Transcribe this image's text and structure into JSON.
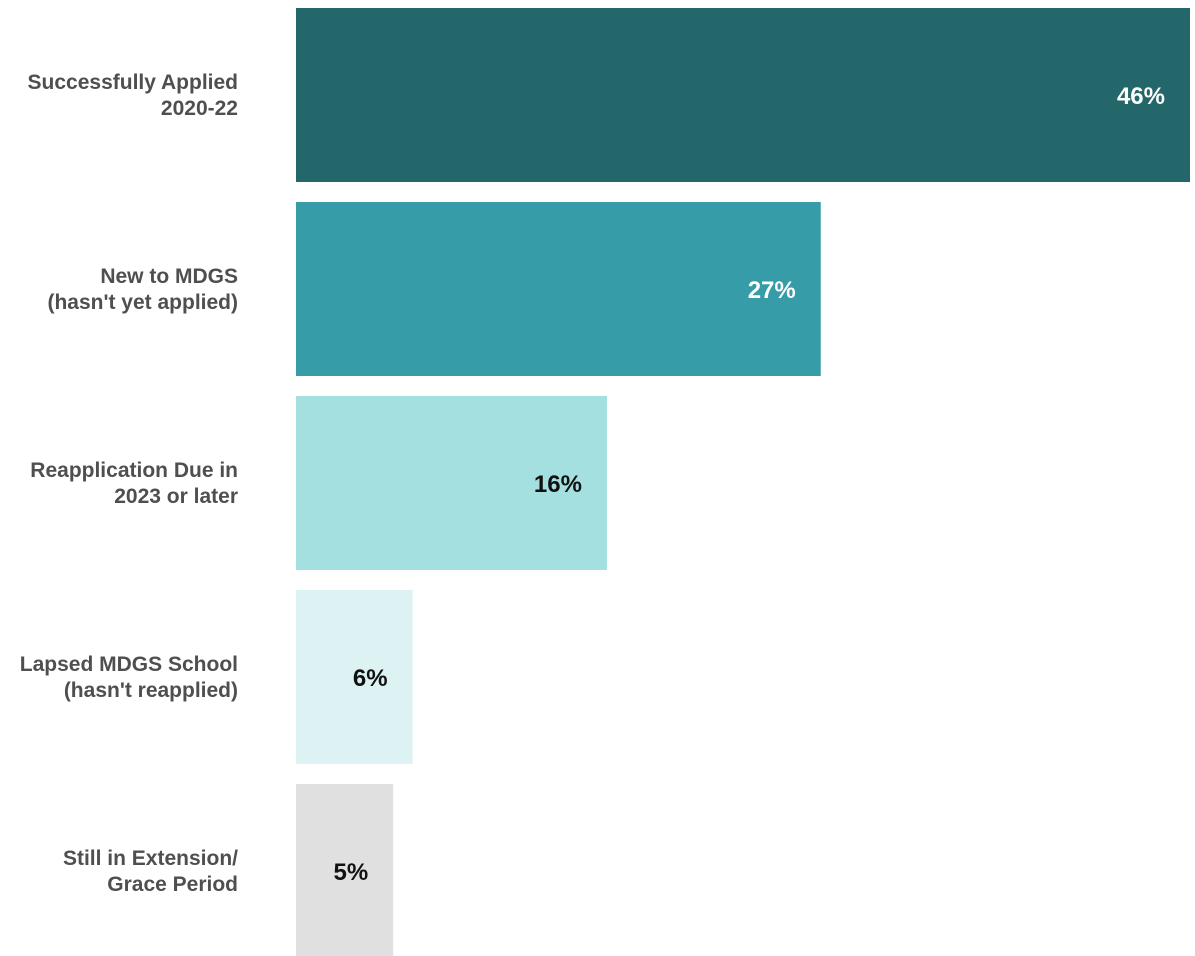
{
  "chart_data": {
    "type": "bar",
    "orientation": "horizontal",
    "categories": [
      [
        "Successfully Applied",
        "2020-22"
      ],
      [
        "New to MDGS",
        "(hasn't yet applied)"
      ],
      [
        "Reapplication Due in",
        "2023 or later"
      ],
      [
        "Lapsed MDGS School",
        "(hasn't reapplied)"
      ],
      [
        "Still in Extension/",
        "Grace Period"
      ]
    ],
    "values": [
      46,
      27,
      16,
      6,
      5
    ],
    "data_labels": [
      "46%",
      "27%",
      "16%",
      "6%",
      "5%"
    ],
    "bar_colors": [
      "#23676b",
      "#369ca7",
      "#a5e0e1",
      "#dcf2f3",
      "#e0e0e0"
    ],
    "label_colors": [
      "#ffffff",
      "#ffffff",
      "#111111",
      "#111111",
      "#111111"
    ],
    "xlim": [
      0,
      46
    ],
    "grid": false,
    "legend": "none"
  }
}
